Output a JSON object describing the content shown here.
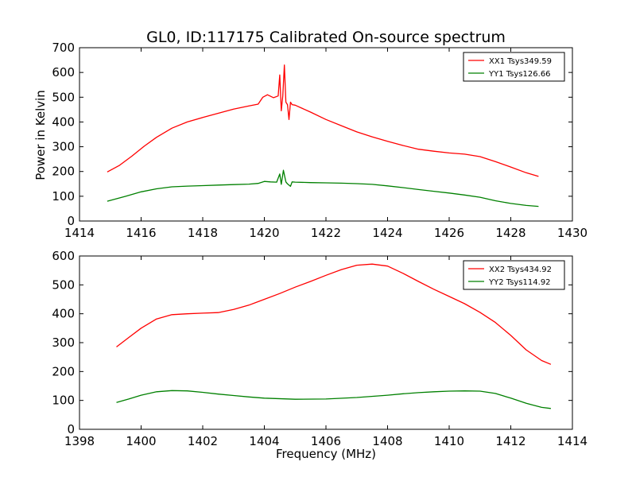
{
  "figure": {
    "title": "GL0, ID:117175 Calibrated On-source spectrum",
    "ylabel": "Power in Kelvin",
    "xlabel": "Frequency (MHz)"
  },
  "colors": {
    "red": "#ff0000",
    "green": "#008000",
    "axis": "#000000",
    "background": "#ffffff"
  },
  "chart_data": [
    {
      "type": "line",
      "xlim": [
        1414,
        1430
      ],
      "ylim": [
        0,
        700
      ],
      "xticks": [
        1414,
        1416,
        1418,
        1420,
        1422,
        1424,
        1426,
        1428,
        1430
      ],
      "yticks": [
        0,
        100,
        200,
        300,
        400,
        500,
        600,
        700
      ],
      "legend_position": "top-right",
      "series": [
        {
          "name": "XX1 Tsys349.59",
          "color": "#ff0000",
          "x": [
            1414.9,
            1415.3,
            1415.7,
            1416.1,
            1416.5,
            1417.0,
            1417.5,
            1418.0,
            1418.5,
            1419.0,
            1419.5,
            1419.8,
            1419.95,
            1420.1,
            1420.3,
            1420.45,
            1420.5,
            1420.55,
            1420.6,
            1420.65,
            1420.7,
            1420.75,
            1420.8,
            1420.85,
            1420.9,
            1421.0,
            1421.5,
            1422.0,
            1422.5,
            1423.0,
            1423.5,
            1424.0,
            1424.5,
            1425.0,
            1425.5,
            1426.0,
            1426.5,
            1427.0,
            1427.5,
            1428.0,
            1428.5,
            1428.9
          ],
          "y": [
            198,
            225,
            262,
            302,
            338,
            375,
            400,
            418,
            435,
            452,
            465,
            472,
            500,
            510,
            498,
            505,
            590,
            445,
            505,
            630,
            480,
            470,
            410,
            480,
            470,
            468,
            440,
            410,
            385,
            360,
            340,
            322,
            305,
            290,
            282,
            275,
            270,
            260,
            240,
            218,
            195,
            180
          ]
        },
        {
          "name": "YY1 Tsys126.66",
          "color": "#008000",
          "x": [
            1414.9,
            1415.5,
            1416.0,
            1416.5,
            1417.0,
            1417.5,
            1418.0,
            1418.5,
            1419.0,
            1419.5,
            1419.8,
            1420.0,
            1420.2,
            1420.4,
            1420.5,
            1420.55,
            1420.62,
            1420.7,
            1420.75,
            1420.85,
            1420.9,
            1421.0,
            1421.5,
            1422.0,
            1422.5,
            1423.0,
            1423.5,
            1424.0,
            1424.5,
            1425.0,
            1425.5,
            1426.0,
            1426.5,
            1427.0,
            1427.5,
            1428.0,
            1428.5,
            1428.9
          ],
          "y": [
            80,
            100,
            118,
            130,
            138,
            141,
            143,
            145,
            147,
            149,
            152,
            160,
            158,
            157,
            190,
            148,
            205,
            158,
            150,
            140,
            158,
            157,
            155,
            154,
            153,
            151,
            148,
            142,
            135,
            127,
            120,
            113,
            105,
            96,
            82,
            71,
            63,
            59
          ]
        }
      ]
    },
    {
      "type": "line",
      "xlim": [
        1398,
        1414
      ],
      "ylim": [
        0,
        600
      ],
      "xticks": [
        1398,
        1400,
        1402,
        1404,
        1406,
        1408,
        1410,
        1412,
        1414
      ],
      "yticks": [
        0,
        100,
        200,
        300,
        400,
        500,
        600
      ],
      "legend_position": "top-right",
      "series": [
        {
          "name": "XX2 Tsys434.92",
          "color": "#ff0000",
          "x": [
            1399.2,
            1399.6,
            1400.0,
            1400.5,
            1401.0,
            1401.5,
            1402.0,
            1402.5,
            1403.0,
            1403.5,
            1404.0,
            1404.5,
            1405.0,
            1405.5,
            1406.0,
            1406.5,
            1407.0,
            1407.5,
            1408.0,
            1408.5,
            1409.0,
            1409.5,
            1410.0,
            1410.5,
            1411.0,
            1411.5,
            1412.0,
            1412.5,
            1413.0,
            1413.3
          ],
          "y": [
            285,
            318,
            350,
            382,
            397,
            400,
            402,
            404,
            415,
            430,
            450,
            470,
            492,
            512,
            533,
            553,
            568,
            572,
            565,
            540,
            512,
            485,
            460,
            435,
            405,
            370,
            325,
            275,
            238,
            225
          ]
        },
        {
          "name": "YY2 Tsys114.92",
          "color": "#008000",
          "x": [
            1399.2,
            1399.6,
            1400.0,
            1400.5,
            1401.0,
            1401.5,
            1402.0,
            1402.5,
            1403.0,
            1403.5,
            1404.0,
            1405.0,
            1406.0,
            1407.0,
            1408.0,
            1408.5,
            1409.0,
            1409.5,
            1410.0,
            1410.5,
            1411.0,
            1411.5,
            1412.0,
            1412.5,
            1413.0,
            1413.3
          ],
          "y": [
            93,
            105,
            118,
            130,
            134,
            133,
            128,
            122,
            117,
            112,
            108,
            104,
            105,
            110,
            118,
            123,
            127,
            130,
            132,
            133,
            132,
            124,
            108,
            90,
            76,
            72
          ]
        }
      ]
    }
  ]
}
